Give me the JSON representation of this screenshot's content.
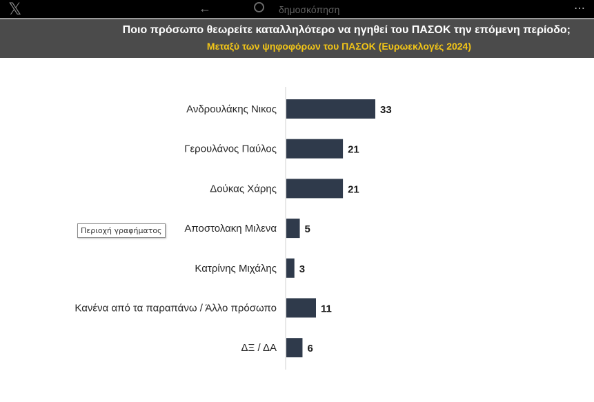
{
  "topbar": {
    "logo": "𝕏",
    "back": "←",
    "search_text": "δημοσκόπηση",
    "more": "⋯"
  },
  "header": {
    "title": "Ποιο πρόσωπο θεωρείτε καταλληλότερο να ηγηθεί του ΠΑΣΟΚ την επόμενη περίοδο;",
    "subtitle": "Μεταξύ των ψηφοφόρων του ΠΑΣΟΚ (Ευρωεκλογές 2024)"
  },
  "tooltip": "Περιοχή γραφήματος",
  "colors": {
    "bar": "#2f3a4b",
    "header_bg": "#4b4b4b",
    "subtitle": "#f2c517"
  },
  "chart_data": {
    "type": "bar",
    "orientation": "horizontal",
    "categories": [
      "Ανδρουλάκης Νικος",
      "Γερουλάνος Παύλος",
      "Δούκας Χάρης",
      "Αποστολακη Μιλενα",
      "Κατρίνης Μιχάλης",
      "Κανένα από τα παραπάνω / Άλλο πρόσωπο",
      "ΔΞ / ΔΑ"
    ],
    "values": [
      33,
      21,
      21,
      5,
      3,
      11,
      6
    ],
    "xlim": [
      0,
      100
    ],
    "grid": false,
    "legend": "none"
  }
}
